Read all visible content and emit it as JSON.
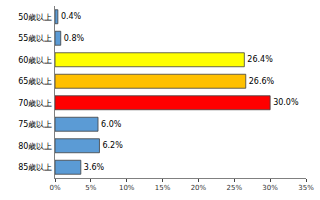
{
  "chart_data": {
    "type": "bar",
    "orientation": "horizontal",
    "categories": [
      "50歳以上",
      "55歳以上",
      "60歳以上",
      "65歳以上",
      "70歳以上",
      "75歳以上",
      "80歳以上",
      "85歳以上"
    ],
    "values": [
      0.4,
      0.8,
      26.4,
      26.6,
      30.0,
      6.0,
      6.2,
      3.6
    ],
    "value_labels": [
      "0.4%",
      "0.8%",
      "26.4%",
      "26.6%",
      "30.0%",
      "6.0%",
      "6.2%",
      "3.6%"
    ],
    "colors": [
      "#5b9bd5",
      "#5b9bd5",
      "#ffff00",
      "#ffc000",
      "#ff0000",
      "#5b9bd5",
      "#5b9bd5",
      "#5b9bd5"
    ],
    "xlim": [
      0,
      35
    ],
    "xticks": [
      {
        "value": 0,
        "label": "0%"
      },
      {
        "value": 5,
        "label": "5%"
      },
      {
        "value": 10,
        "label": "10%"
      },
      {
        "value": 15,
        "label": "15%"
      },
      {
        "value": 20,
        "label": "20%"
      },
      {
        "value": 25,
        "label": "25%"
      },
      {
        "value": 30,
        "label": "30%"
      },
      {
        "value": 35,
        "label": "35%"
      }
    ],
    "grid": false,
    "data_labels": true
  }
}
